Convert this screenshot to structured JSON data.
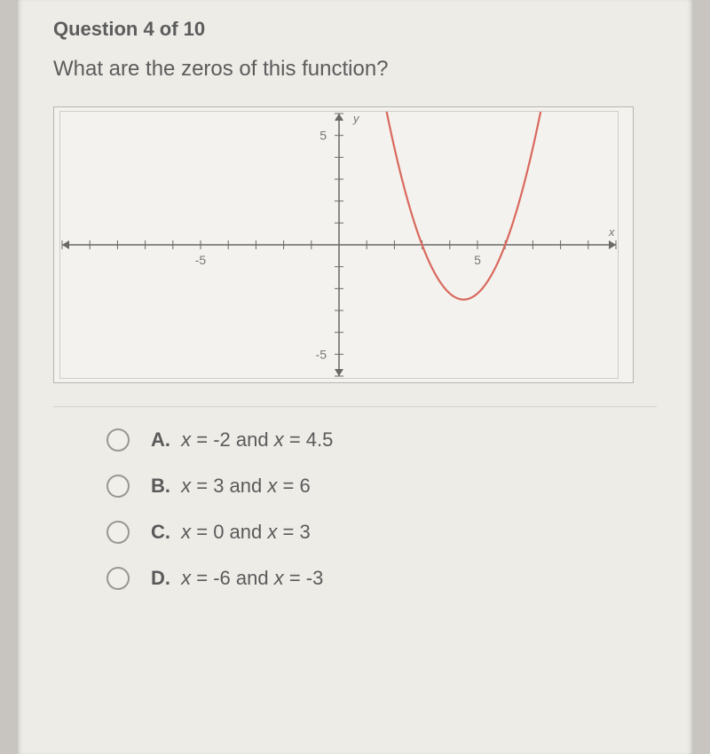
{
  "header": {
    "question_label": "Question 4 of 10",
    "question_text": "What are the zeros of this function?"
  },
  "chart": {
    "type": "line",
    "x_axis_label": "x",
    "y_axis_label": "y",
    "xlim": [
      -10,
      10
    ],
    "ylim": [
      -6,
      6
    ],
    "xtick_step": 1,
    "ytick_step": 1,
    "xtick_labels": {
      "-5": "-5",
      "5": "5"
    },
    "ytick_labels": {
      "-5": "-5",
      "5": "5"
    },
    "background_color": "#f4f2ee",
    "border_color": "#cfcdc8",
    "axis_color": "#6b6965",
    "tick_color": "#6b6965",
    "axis_width": 1.5,
    "curve": {
      "color": "#d9695e",
      "width": 2.2,
      "vertex": [
        4.5,
        -2.5
      ],
      "zeros": [
        3,
        6
      ],
      "a": 1.11,
      "points": [
        [
          2.2,
          5.4
        ],
        [
          2.5,
          2.0
        ],
        [
          3,
          0
        ],
        [
          3.5,
          -1.4
        ],
        [
          4,
          -2.22
        ],
        [
          4.5,
          -2.5
        ],
        [
          5,
          -2.22
        ],
        [
          5.5,
          -1.4
        ],
        [
          6,
          0
        ],
        [
          6.5,
          2.0
        ],
        [
          6.8,
          5.4
        ]
      ]
    },
    "arrows": true,
    "label_color": "#7a7772",
    "label_fontsize": 14
  },
  "choices": [
    {
      "letter": "A.",
      "text_a": "x",
      "text_b": " = -2 and ",
      "text_c": "x",
      "text_d": " = 4.5"
    },
    {
      "letter": "B.",
      "text_a": "x",
      "text_b": " = 3 and ",
      "text_c": "x",
      "text_d": " = 6"
    },
    {
      "letter": "C.",
      "text_a": "x",
      "text_b": " = 0 and ",
      "text_c": "x",
      "text_d": " = 3"
    },
    {
      "letter": "D.",
      "text_a": "x",
      "text_b": " = -6 and ",
      "text_c": "x",
      "text_d": " = -3"
    }
  ]
}
